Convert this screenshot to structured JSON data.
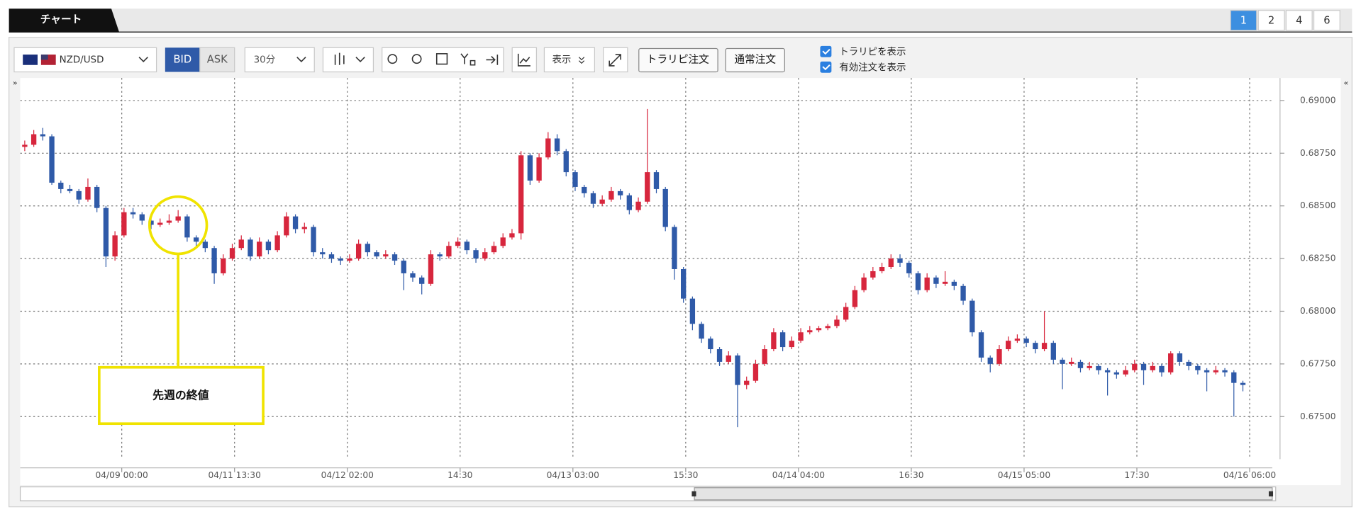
{
  "ui": {
    "tab_title": "チャート",
    "pages": [
      "1",
      "2",
      "4",
      "6"
    ],
    "symbol": "NZD/USD",
    "bid": "BID",
    "ask": "ASK",
    "timeframe": "30分",
    "display": "表示",
    "trarip_order": "トラリピ注文",
    "normal_order": "通常注文",
    "options": [
      "トラリピを表示",
      "有効注文を表示"
    ],
    "expand_left": "»",
    "expand_right": "«"
  },
  "chart_data": {
    "type": "candlestick",
    "annotation": "先週の終値",
    "up_color": "#d7263d",
    "down_color": "#2f5aa8",
    "grid": true,
    "ylim": [
      0.67298,
      0.69107
    ],
    "yticks": [
      {
        "value": 0.69,
        "label": "0.69000"
      },
      {
        "value": 0.6875,
        "label": "0.68750"
      },
      {
        "value": 0.685,
        "label": "0.68500"
      },
      {
        "value": 0.6825,
        "label": "0.68250"
      },
      {
        "value": 0.68,
        "label": "0.68000"
      },
      {
        "value": 0.6775,
        "label": "0.67750"
      },
      {
        "value": 0.675,
        "label": "0.67500"
      }
    ],
    "xlim": [
      0,
      138.75
    ],
    "xticks": [
      {
        "value": 11.25,
        "label": "04/09 00:00"
      },
      {
        "value": 23.75,
        "label": "04/11 13:30"
      },
      {
        "value": 36.25,
        "label": "04/12 02:00"
      },
      {
        "value": 48.75,
        "label": "14:30"
      },
      {
        "value": 61.25,
        "label": "04/13 03:00"
      },
      {
        "value": 73.75,
        "label": "15:30"
      },
      {
        "value": 86.25,
        "label": "04/14 04:00"
      },
      {
        "value": 98.75,
        "label": "16:30"
      },
      {
        "value": 111.25,
        "label": "04/15 05:00"
      },
      {
        "value": 123.75,
        "label": "17:30"
      },
      {
        "value": 136.25,
        "label": "04/16 06:00"
      }
    ],
    "candles": [
      [
        0.6878,
        0.6881,
        0.6876,
        0.6879
      ],
      [
        0.6879,
        0.6886,
        0.6878,
        0.6884
      ],
      [
        0.6884,
        0.6887,
        0.6881,
        0.6883
      ],
      [
        0.6883,
        0.6884,
        0.686,
        0.6861
      ],
      [
        0.6861,
        0.6862,
        0.6856,
        0.6858
      ],
      [
        0.6858,
        0.686,
        0.6856,
        0.6857
      ],
      [
        0.6857,
        0.6858,
        0.6851,
        0.6853
      ],
      [
        0.6853,
        0.6863,
        0.6852,
        0.6859
      ],
      [
        0.6859,
        0.686,
        0.6847,
        0.6849
      ],
      [
        0.6849,
        0.685,
        0.6821,
        0.6826
      ],
      [
        0.6826,
        0.6838,
        0.6824,
        0.6836
      ],
      [
        0.6836,
        0.6849,
        0.6835,
        0.6847
      ],
      [
        0.6847,
        0.6849,
        0.6844,
        0.6846
      ],
      [
        0.6846,
        0.6847,
        0.6841,
        0.6843
      ],
      [
        0.6843,
        0.6844,
        0.6839,
        0.6841
      ],
      [
        0.6841,
        0.6844,
        0.684,
        0.6842
      ],
      [
        0.6842,
        0.6846,
        0.6841,
        0.6843
      ],
      [
        0.6843,
        0.6848,
        0.6842,
        0.6845
      ],
      [
        0.6845,
        0.6846,
        0.6833,
        0.6835
      ],
      [
        0.6835,
        0.6836,
        0.6831,
        0.6833
      ],
      [
        0.6833,
        0.6834,
        0.6828,
        0.683
      ],
      [
        0.683,
        0.6831,
        0.6813,
        0.6818
      ],
      [
        0.6818,
        0.6827,
        0.6817,
        0.6825
      ],
      [
        0.6825,
        0.6832,
        0.6824,
        0.683
      ],
      [
        0.683,
        0.6836,
        0.6829,
        0.6834
      ],
      [
        0.6834,
        0.6835,
        0.6824,
        0.6826
      ],
      [
        0.6826,
        0.6835,
        0.6825,
        0.6833
      ],
      [
        0.6833,
        0.6834,
        0.6827,
        0.6829
      ],
      [
        0.6829,
        0.6838,
        0.6828,
        0.6836
      ],
      [
        0.6836,
        0.6847,
        0.6835,
        0.6845
      ],
      [
        0.6845,
        0.6846,
        0.6837,
        0.6839
      ],
      [
        0.6839,
        0.6842,
        0.6837,
        0.684
      ],
      [
        0.684,
        0.6841,
        0.6826,
        0.6828
      ],
      [
        0.6828,
        0.683,
        0.6825,
        0.6827
      ],
      [
        0.6827,
        0.6828,
        0.6823,
        0.6825
      ],
      [
        0.6825,
        0.6826,
        0.6822,
        0.6824
      ],
      [
        0.6824,
        0.6827,
        0.6823,
        0.6825
      ],
      [
        0.6825,
        0.6834,
        0.6824,
        0.6832
      ],
      [
        0.6832,
        0.6833,
        0.6826,
        0.6828
      ],
      [
        0.6828,
        0.6829,
        0.6825,
        0.6826
      ],
      [
        0.6826,
        0.6829,
        0.6825,
        0.6827
      ],
      [
        0.6827,
        0.6828,
        0.6822,
        0.6824
      ],
      [
        0.6824,
        0.6825,
        0.681,
        0.6818
      ],
      [
        0.6818,
        0.6819,
        0.6814,
        0.6816
      ],
      [
        0.6816,
        0.6817,
        0.6808,
        0.6813
      ],
      [
        0.6813,
        0.6829,
        0.6812,
        0.6827
      ],
      [
        0.6827,
        0.6828,
        0.6824,
        0.6826
      ],
      [
        0.6826,
        0.6833,
        0.6825,
        0.6831
      ],
      [
        0.6831,
        0.6835,
        0.683,
        0.6833
      ],
      [
        0.6833,
        0.6834,
        0.6827,
        0.6829
      ],
      [
        0.6829,
        0.683,
        0.6823,
        0.6825
      ],
      [
        0.6825,
        0.683,
        0.6824,
        0.6828
      ],
      [
        0.6828,
        0.6833,
        0.6827,
        0.6831
      ],
      [
        0.6831,
        0.6837,
        0.683,
        0.6835
      ],
      [
        0.6835,
        0.6839,
        0.6834,
        0.6837
      ],
      [
        0.6837,
        0.6876,
        0.6834,
        0.6874
      ],
      [
        0.6874,
        0.6875,
        0.686,
        0.6862
      ],
      [
        0.6862,
        0.6875,
        0.6861,
        0.6873
      ],
      [
        0.6873,
        0.6885,
        0.6872,
        0.6882
      ],
      [
        0.6882,
        0.6884,
        0.6874,
        0.6876
      ],
      [
        0.6876,
        0.6877,
        0.6864,
        0.6866
      ],
      [
        0.6866,
        0.6867,
        0.6857,
        0.6859
      ],
      [
        0.6859,
        0.686,
        0.6854,
        0.6856
      ],
      [
        0.6856,
        0.6857,
        0.6849,
        0.6851
      ],
      [
        0.6851,
        0.6855,
        0.685,
        0.6853
      ],
      [
        0.6853,
        0.6859,
        0.6852,
        0.6857
      ],
      [
        0.6857,
        0.6858,
        0.6853,
        0.6855
      ],
      [
        0.6855,
        0.6856,
        0.6846,
        0.6848
      ],
      [
        0.6848,
        0.6854,
        0.6847,
        0.6852
      ],
      [
        0.6852,
        0.6896,
        0.6851,
        0.6866
      ],
      [
        0.6866,
        0.6867,
        0.6856,
        0.6858
      ],
      [
        0.6858,
        0.6859,
        0.6838,
        0.684
      ],
      [
        0.684,
        0.6841,
        0.6815,
        0.682
      ],
      [
        0.682,
        0.6821,
        0.6804,
        0.6806
      ],
      [
        0.6806,
        0.6807,
        0.6791,
        0.6794
      ],
      [
        0.6794,
        0.6795,
        0.6785,
        0.6787
      ],
      [
        0.6787,
        0.6788,
        0.678,
        0.6782
      ],
      [
        0.6782,
        0.6783,
        0.6774,
        0.6776
      ],
      [
        0.6776,
        0.6781,
        0.6775,
        0.6779
      ],
      [
        0.6779,
        0.678,
        0.6745,
        0.6765
      ],
      [
        0.6765,
        0.6769,
        0.6763,
        0.6767
      ],
      [
        0.6767,
        0.6777,
        0.6766,
        0.6775
      ],
      [
        0.6775,
        0.6784,
        0.6774,
        0.6782
      ],
      [
        0.6782,
        0.6792,
        0.6781,
        0.679
      ],
      [
        0.679,
        0.6791,
        0.6781,
        0.6783
      ],
      [
        0.6783,
        0.6788,
        0.6782,
        0.6786
      ],
      [
        0.6786,
        0.6792,
        0.6785,
        0.679
      ],
      [
        0.679,
        0.6793,
        0.6789,
        0.6791
      ],
      [
        0.6791,
        0.6793,
        0.679,
        0.6792
      ],
      [
        0.6792,
        0.6794,
        0.6791,
        0.6793
      ],
      [
        0.6793,
        0.6798,
        0.6792,
        0.6796
      ],
      [
        0.6796,
        0.6804,
        0.6795,
        0.6802
      ],
      [
        0.6802,
        0.6812,
        0.6801,
        0.681
      ],
      [
        0.681,
        0.6818,
        0.6809,
        0.6816
      ],
      [
        0.6816,
        0.6821,
        0.6815,
        0.6819
      ],
      [
        0.6819,
        0.6823,
        0.6818,
        0.6821
      ],
      [
        0.6821,
        0.6827,
        0.682,
        0.6825
      ],
      [
        0.6825,
        0.6827,
        0.6821,
        0.6823
      ],
      [
        0.6823,
        0.6824,
        0.6816,
        0.6818
      ],
      [
        0.6818,
        0.6819,
        0.6808,
        0.681
      ],
      [
        0.681,
        0.6818,
        0.6809,
        0.6816
      ],
      [
        0.6816,
        0.6817,
        0.6811,
        0.6813
      ],
      [
        0.6813,
        0.6819,
        0.6812,
        0.6814
      ],
      [
        0.6814,
        0.6815,
        0.681,
        0.6812
      ],
      [
        0.6812,
        0.6813,
        0.6803,
        0.6805
      ],
      [
        0.6805,
        0.6806,
        0.6788,
        0.679
      ],
      [
        0.679,
        0.6791,
        0.6776,
        0.6778
      ],
      [
        0.6778,
        0.6779,
        0.6771,
        0.6775
      ],
      [
        0.6775,
        0.6784,
        0.6774,
        0.6782
      ],
      [
        0.6782,
        0.6788,
        0.6781,
        0.6786
      ],
      [
        0.6786,
        0.6789,
        0.6785,
        0.6787
      ],
      [
        0.6787,
        0.6788,
        0.6783,
        0.6785
      ],
      [
        0.6785,
        0.6786,
        0.678,
        0.6782
      ],
      [
        0.6782,
        0.68,
        0.6781,
        0.6785
      ],
      [
        0.6785,
        0.6786,
        0.6775,
        0.6777
      ],
      [
        0.6777,
        0.6778,
        0.6763,
        0.6775
      ],
      [
        0.6775,
        0.6778,
        0.6774,
        0.6776
      ],
      [
        0.6776,
        0.6777,
        0.6771,
        0.6773
      ],
      [
        0.6773,
        0.6776,
        0.6772,
        0.6774
      ],
      [
        0.6774,
        0.6775,
        0.677,
        0.6772
      ],
      [
        0.6772,
        0.6773,
        0.676,
        0.6771
      ],
      [
        0.6771,
        0.6772,
        0.6768,
        0.677
      ],
      [
        0.677,
        0.6774,
        0.6769,
        0.6772
      ],
      [
        0.6772,
        0.6777,
        0.6771,
        0.6775
      ],
      [
        0.6775,
        0.6776,
        0.6765,
        0.6772
      ],
      [
        0.6772,
        0.6776,
        0.6771,
        0.6774
      ],
      [
        0.6774,
        0.6775,
        0.6769,
        0.6771
      ],
      [
        0.6771,
        0.6781,
        0.677,
        0.678
      ],
      [
        0.678,
        0.6781,
        0.6774,
        0.6776
      ],
      [
        0.6776,
        0.6777,
        0.6772,
        0.6774
      ],
      [
        0.6774,
        0.6775,
        0.677,
        0.6772
      ],
      [
        0.6772,
        0.6773,
        0.6762,
        0.6771
      ],
      [
        0.6771,
        0.6774,
        0.677,
        0.6772
      ],
      [
        0.6772,
        0.6773,
        0.6769,
        0.6771
      ],
      [
        0.6771,
        0.6772,
        0.675,
        0.6766
      ],
      [
        0.6766,
        0.6767,
        0.6762,
        0.6765
      ]
    ]
  }
}
